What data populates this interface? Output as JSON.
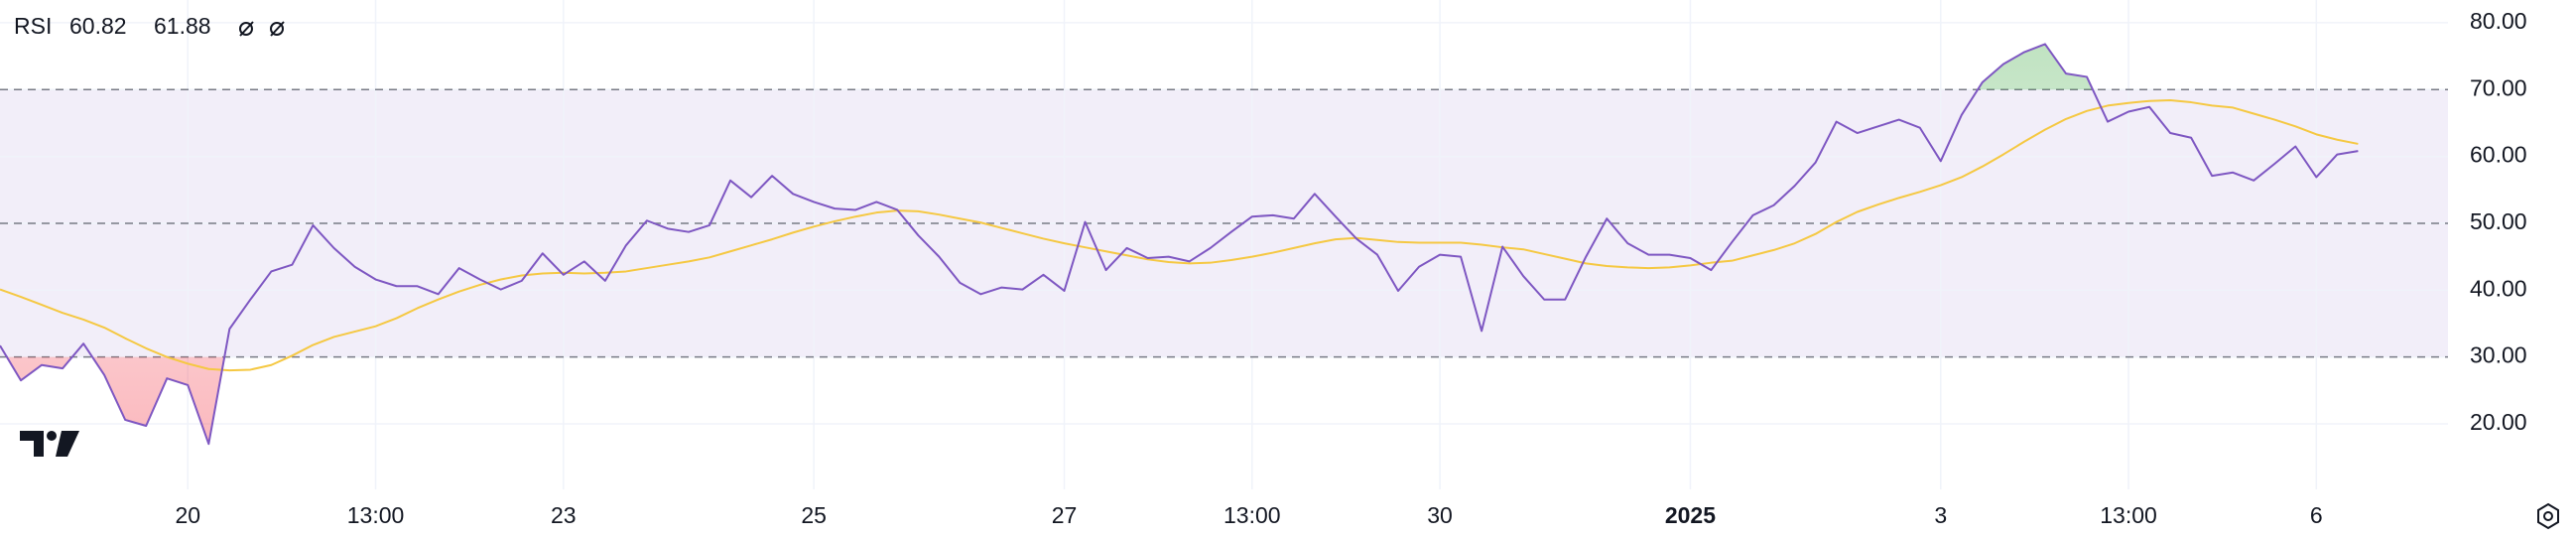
{
  "chart_data": {
    "type": "line",
    "title": "RSI",
    "categories": [
      null,
      null,
      null,
      null,
      null,
      null,
      null,
      null,
      null,
      "20",
      null,
      null,
      null,
      null,
      null,
      null,
      null,
      null,
      "13:00",
      null,
      null,
      null,
      null,
      null,
      null,
      null,
      null,
      "23",
      null,
      null,
      null,
      null,
      null,
      null,
      null,
      null,
      null,
      null,
      null,
      "25",
      null,
      null,
      null,
      null,
      null,
      null,
      null,
      null,
      null,
      null,
      null,
      "27",
      null,
      null,
      null,
      null,
      null,
      null,
      null,
      null,
      "13:00",
      null,
      null,
      null,
      null,
      null,
      null,
      null,
      null,
      "30",
      null,
      null,
      null,
      null,
      null,
      null,
      null,
      null,
      null,
      null,
      null,
      "2025",
      null,
      null,
      null,
      null,
      null,
      null,
      null,
      null,
      null,
      null,
      null,
      "3",
      null,
      null,
      null,
      null,
      null,
      null,
      null,
      null,
      "13:00",
      null,
      null,
      null,
      null,
      null,
      null,
      null,
      null,
      "6",
      null,
      null
    ],
    "series": [
      {
        "color": "#7e57c2",
        "values": [
          31.7,
          26.5,
          28.8,
          28.3,
          32,
          27.3,
          20.6,
          19.7,
          26.8,
          25.8,
          17,
          34.2,
          38.6,
          42.8,
          43.8,
          49.7,
          46.3,
          43.5,
          41.6,
          40.6,
          40.6,
          39.4,
          43.3,
          41.6,
          40.1,
          41.4,
          45.5,
          42.3,
          44.3,
          41.4,
          46.7,
          50.4,
          49.2,
          48.7,
          49.7,
          56.4,
          53.9,
          57.1,
          54.4,
          53.2,
          52.2,
          52,
          53.2,
          52,
          48.2,
          45,
          41.1,
          39.4,
          40.4,
          40.1,
          42.3,
          39.9,
          50.2,
          43,
          46.3,
          44.8,
          45,
          44.3,
          46.3,
          48.7,
          51,
          51.2,
          50.7,
          54.4,
          51,
          47.7,
          45.3,
          39.9,
          43.5,
          45.3,
          45,
          33.9,
          46.5,
          42.1,
          38.6,
          38.6,
          45,
          50.7,
          47,
          45.3,
          45.3,
          44.8,
          43,
          47.2,
          51.2,
          52.7,
          55.6,
          59.1,
          65.2,
          63.5,
          64.5,
          65.5,
          64.3,
          59.3,
          66.2,
          71.1,
          73.8,
          75.6,
          76.8,
          72.4,
          71.9,
          65.2,
          66.7,
          67.4,
          63.5,
          62.8,
          57.1,
          57.6,
          56.4,
          58.9,
          61.5,
          56.9,
          60.3,
          60.82
        ]
      },
      {
        "color": "#f5c842",
        "values": [
          40.1,
          39,
          37.8,
          36.6,
          35.6,
          34.4,
          32.8,
          31.3,
          30,
          29,
          28.2,
          28,
          28.1,
          28.8,
          30.2,
          31.8,
          33,
          33.8,
          34.6,
          35.8,
          37.3,
          38.6,
          39.8,
          40.8,
          41.6,
          42.2,
          42.5,
          42.6,
          42.5,
          42.6,
          42.8,
          43.3,
          43.8,
          44.3,
          44.9,
          45.8,
          46.7,
          47.6,
          48.6,
          49.5,
          50.3,
          51,
          51.6,
          51.9,
          51.8,
          51.3,
          50.7,
          50.1,
          49.3,
          48.5,
          47.7,
          47,
          46.4,
          45.8,
          45.2,
          44.6,
          44.2,
          44,
          44.1,
          44.5,
          45,
          45.6,
          46.3,
          47,
          47.6,
          47.8,
          47.5,
          47.2,
          47.1,
          47.1,
          47.1,
          46.8,
          46.4,
          46.1,
          45.4,
          44.7,
          44,
          43.6,
          43.4,
          43.3,
          43.4,
          43.7,
          44.1,
          44.4,
          45.2,
          46,
          47,
          48.4,
          50.2,
          51.7,
          52.8,
          53.8,
          54.7,
          55.7,
          56.9,
          58.5,
          60.3,
          62.2,
          64,
          65.6,
          66.8,
          67.6,
          68,
          68.3,
          68.4,
          68.1,
          67.6,
          67.3,
          66.4,
          65.5,
          64.5,
          63.3,
          62.5,
          61.88
        ]
      }
    ],
    "ylim": [
      10.2,
      83.4
    ],
    "yticks": [
      {
        "value": 20,
        "label": "20.00"
      },
      {
        "value": 30,
        "label": "30.00"
      },
      {
        "value": 40,
        "label": "40.00"
      },
      {
        "value": 50,
        "label": "50.00"
      },
      {
        "value": 60,
        "label": "60.00"
      },
      {
        "value": 70,
        "label": "70.00"
      },
      {
        "value": 80,
        "label": "80.00"
      }
    ],
    "band": [
      30,
      70
    ],
    "band_color": "#7e57c2",
    "hlines": [
      70,
      50,
      30
    ],
    "overbought_color": "#4caf50",
    "oversold_color": "#f23645",
    "grid": true
  }
}
